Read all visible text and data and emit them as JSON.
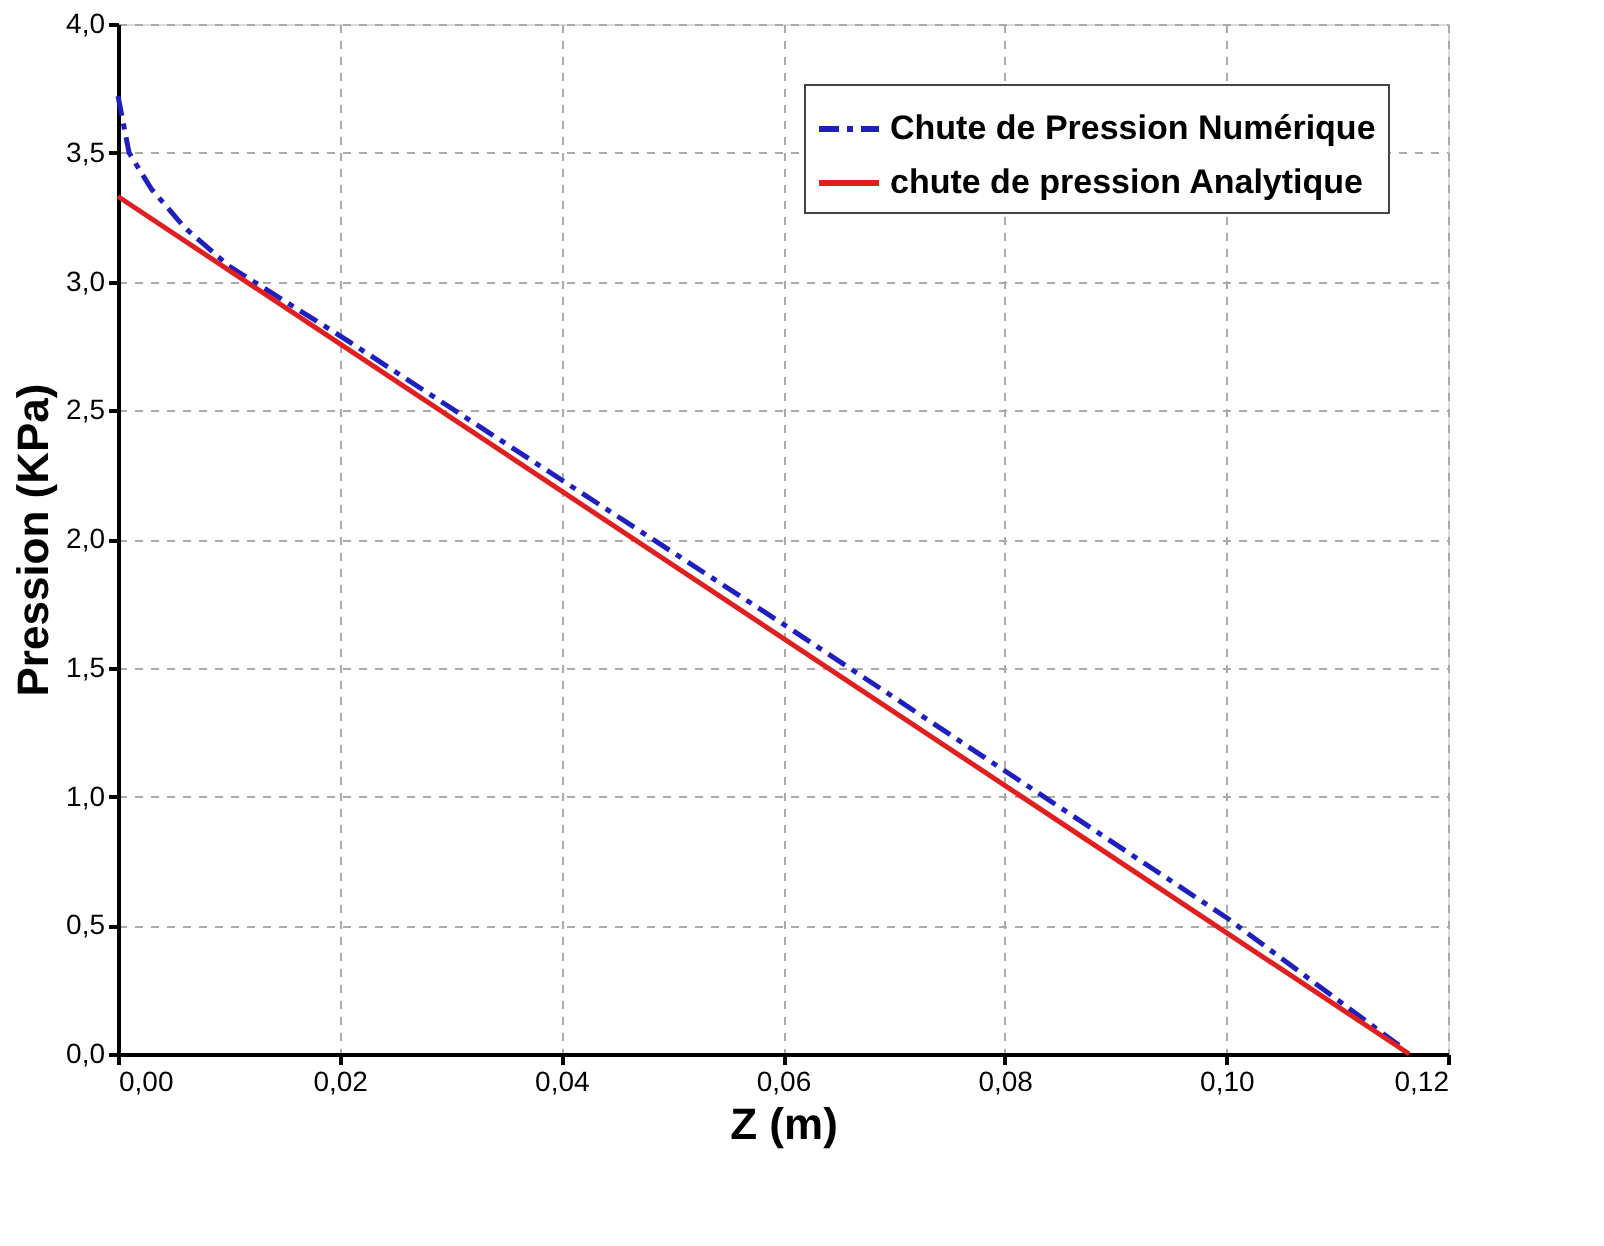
{
  "chart_data": {
    "type": "line",
    "xlabel": "Z (m)",
    "ylabel": "Pression (KPa)",
    "xlim": [
      0,
      0.12
    ],
    "ylim": [
      0,
      4
    ],
    "xticks": [
      {
        "value": 0,
        "label": "0,00"
      },
      {
        "value": 0.02,
        "label": "0,02"
      },
      {
        "value": 0.04,
        "label": "0,04"
      },
      {
        "value": 0.06,
        "label": "0,06"
      },
      {
        "value": 0.08,
        "label": "0,08"
      },
      {
        "value": 0.1,
        "label": "0,10"
      },
      {
        "value": 0.12,
        "label": "0,12"
      }
    ],
    "yticks": [
      {
        "value": 0,
        "label": "0,0"
      },
      {
        "value": 0.5,
        "label": "0,5"
      },
      {
        "value": 1,
        "label": "1,0"
      },
      {
        "value": 1.5,
        "label": "1,5"
      },
      {
        "value": 2,
        "label": "2,0"
      },
      {
        "value": 2.5,
        "label": "2,5"
      },
      {
        "value": 3,
        "label": "3,0"
      },
      {
        "value": 3.5,
        "label": "3,5"
      },
      {
        "value": 4,
        "label": "4,0"
      }
    ],
    "grid": true,
    "legend": "top right",
    "series": [
      {
        "name": "Chute de Pression Numérique",
        "color": "#1f1fbf",
        "line_style": "dashdot",
        "x": [
          0,
          0.001,
          0.003,
          0.006,
          0.01,
          0.02,
          0.04,
          0.06,
          0.08,
          0.1,
          0.116
        ],
        "values": [
          3.72,
          3.5,
          3.36,
          3.21,
          3.06,
          2.79,
          2.23,
          1.67,
          1.1,
          0.53,
          0.02
        ]
      },
      {
        "name": "chute de pression Analytique",
        "color": "#e02020",
        "line_style": "solid",
        "x": [
          0,
          0.1165
        ],
        "values": [
          3.33,
          0.0
        ]
      }
    ]
  }
}
